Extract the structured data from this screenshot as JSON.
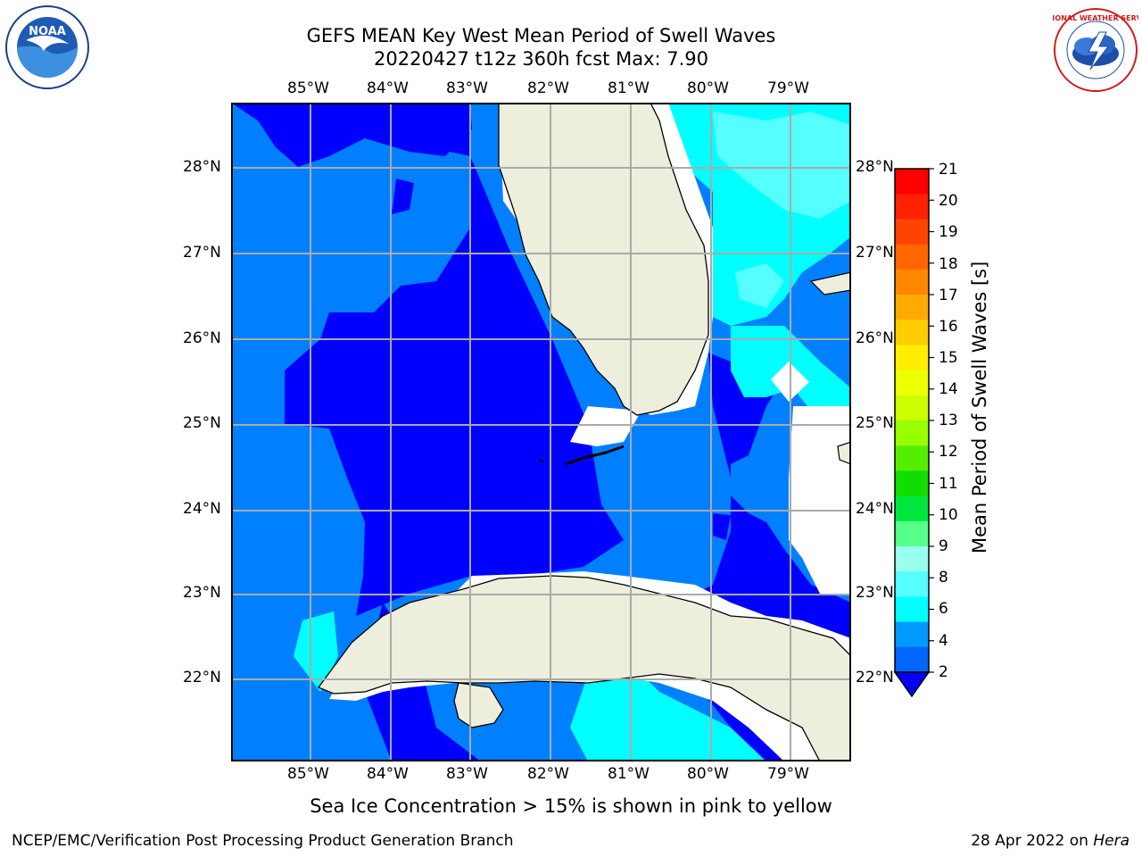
{
  "title": {
    "line1": "GEFS MEAN Key West Mean Period of Swell Waves",
    "line2": "20220427 t12z 360h fcst   Max: 7.90"
  },
  "logos": {
    "left": "NOAA",
    "right": "NATIONAL WEATHER SERVICE"
  },
  "map": {
    "lon_labels": [
      "85°W",
      "84°W",
      "83°W",
      "82°W",
      "81°W",
      "80°W",
      "79°W"
    ],
    "lat_labels": [
      "28°N",
      "27°N",
      "26°N",
      "25°N",
      "24°N",
      "23°N",
      "22°N"
    ]
  },
  "colorbar": {
    "title": "Mean Period of Swell Waves [s]",
    "ticks": [
      "21",
      "20",
      "19",
      "18",
      "17",
      "16",
      "15",
      "14",
      "13",
      "12",
      "11",
      "10",
      "9",
      "8",
      "6",
      "4",
      "2"
    ],
    "colors_top_to_bottom": [
      "#ff0000",
      "#ff2200",
      "#ff4400",
      "#ff6600",
      "#ff8800",
      "#ffaa00",
      "#ffcc00",
      "#ffee00",
      "#eeff00",
      "#ccff00",
      "#99ff00",
      "#55ee00",
      "#11dd00",
      "#00e63c",
      "#55ff88",
      "#99ffee",
      "#55ffff",
      "#00ffff",
      "#0099ff",
      "#0066ff"
    ]
  },
  "caption": "Sea Ice Concentration > 15% is shown in pink to yellow",
  "footer": {
    "left": "NCEP/EMC/Verification Post Processing Product Generation Branch",
    "right_date": "28 Apr 2022 on ",
    "right_host": "Hera"
  }
}
